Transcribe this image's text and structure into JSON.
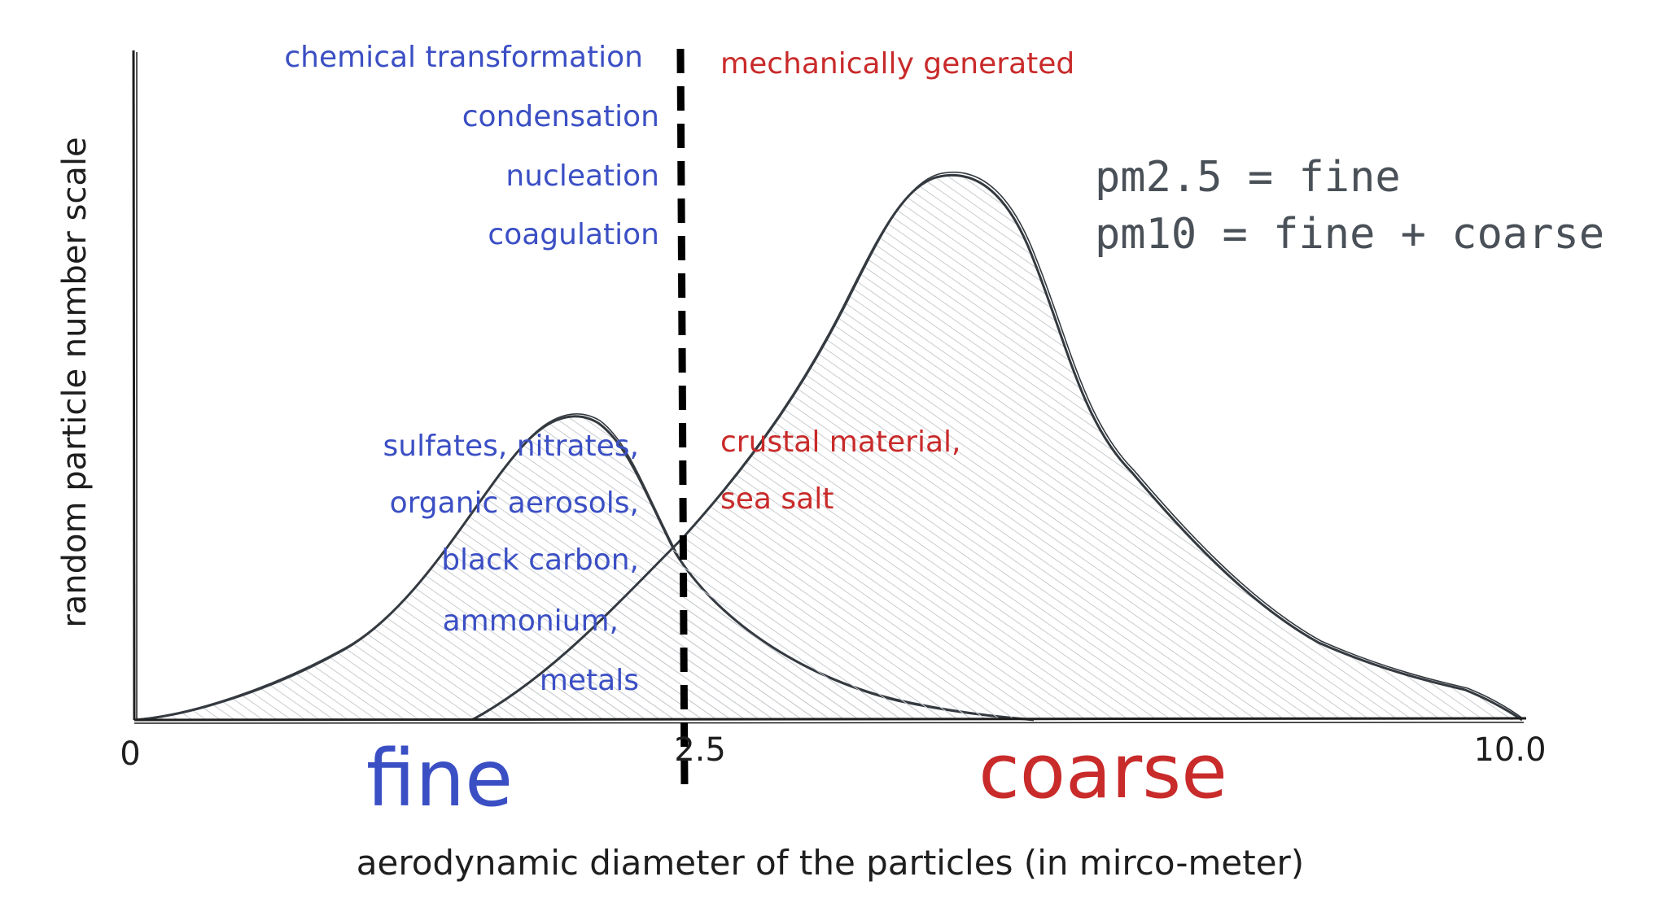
{
  "axes": {
    "x_label": "aerodynamic diameter of the particles (in mirco-meter)",
    "y_label": "random particle number scale",
    "ticks": [
      "0",
      "2.5",
      "10.0"
    ]
  },
  "regions": {
    "fine_label": "fine",
    "coarse_label": "coarse"
  },
  "fine_processes": [
    "chemical transformation",
    "condensation",
    "nucleation",
    "coagulation"
  ],
  "coarse_process": "mechanically generated",
  "fine_components": [
    "sulfates, nitrates,",
    "organic aerosols,",
    "black carbon,",
    "ammonium,",
    "metals"
  ],
  "coarse_components": [
    "crustal material,",
    "sea salt"
  ],
  "definitions": [
    "pm2.5 = fine",
    "pm10 = fine + coarse"
  ],
  "colors": {
    "blue": "#3b4fc4",
    "red": "#c92a2a",
    "ink": "#1e1e1e",
    "curve": "#343a40",
    "hatch": "#c8ccd0",
    "gray_text": "#495057"
  }
}
